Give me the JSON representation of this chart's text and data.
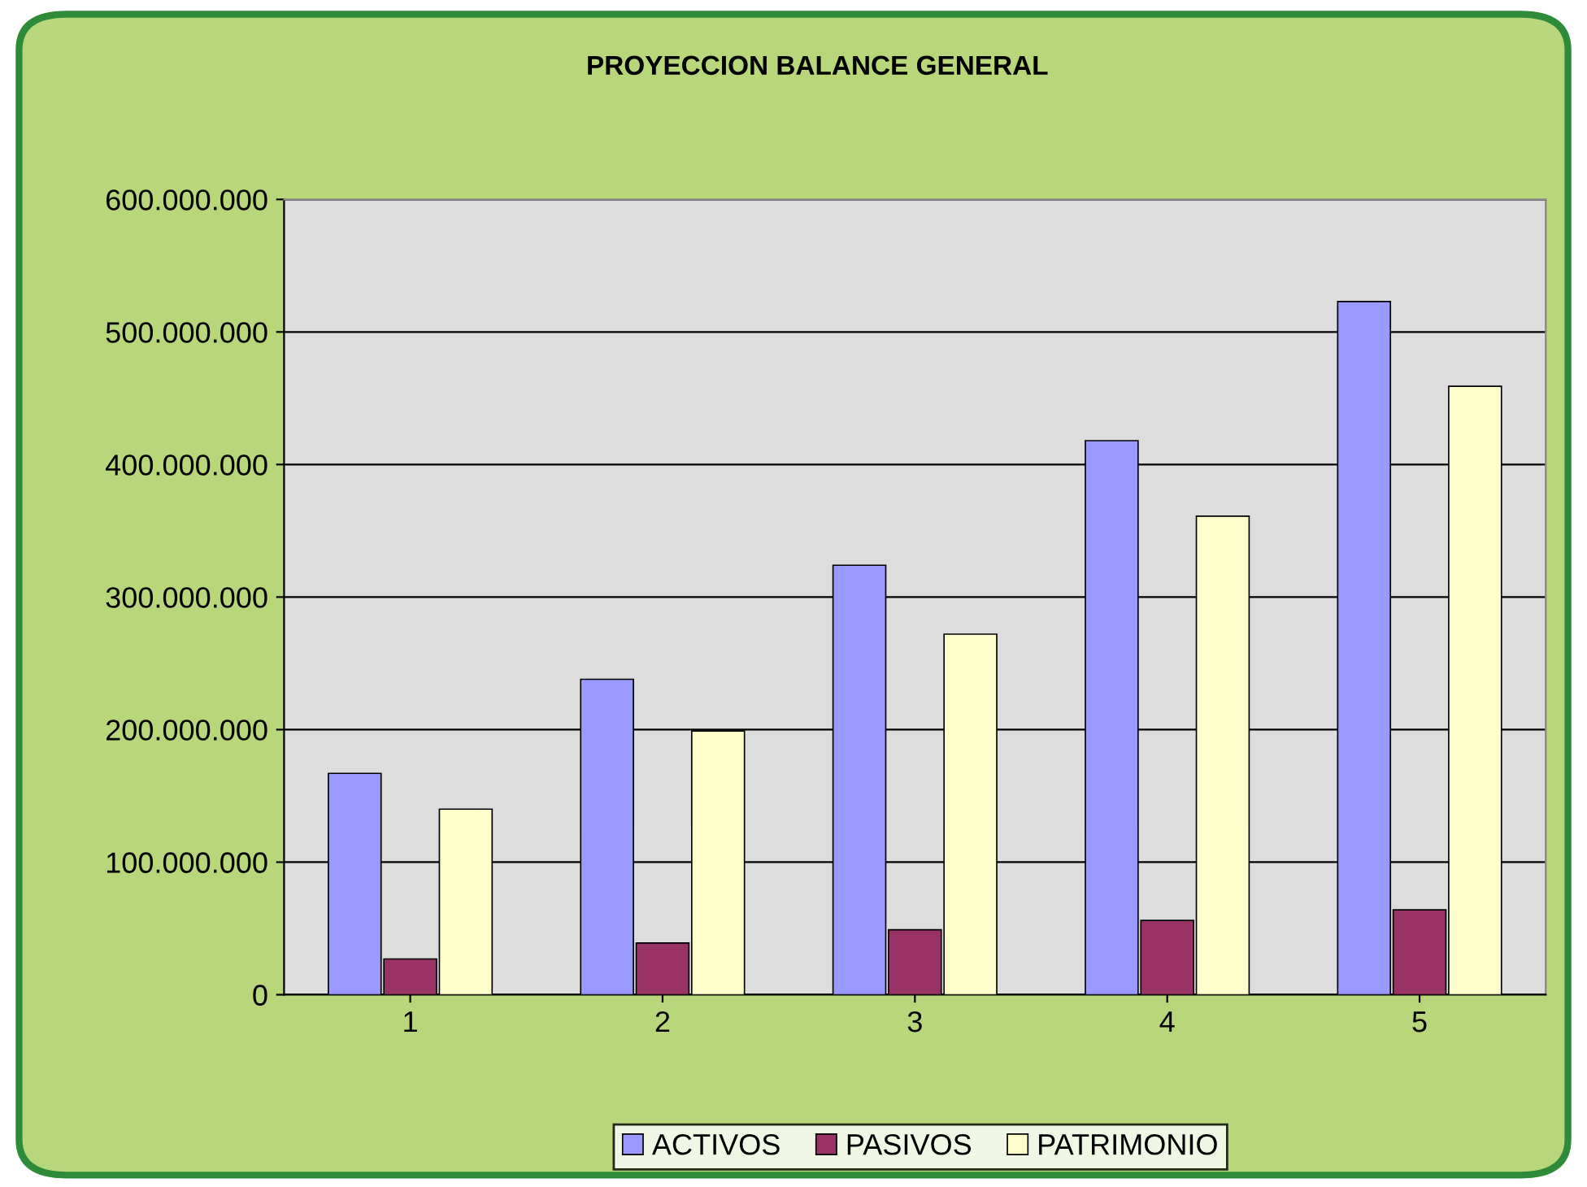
{
  "chart_data": {
    "type": "bar",
    "title": "PROYECCION BALANCE GENERAL",
    "categories": [
      "1",
      "2",
      "3",
      "4",
      "5"
    ],
    "series": [
      {
        "name": "ACTIVOS",
        "color": "#9999ff",
        "values": [
          167000000,
          238000000,
          324000000,
          418000000,
          523000000
        ]
      },
      {
        "name": "PASIVOS",
        "color": "#993366",
        "values": [
          27000000,
          39000000,
          49000000,
          56000000,
          64000000
        ]
      },
      {
        "name": "PATRIMONIO",
        "color": "#ffffcc",
        "values": [
          140000000,
          199000000,
          272000000,
          361000000,
          459000000
        ]
      }
    ],
    "ylim": [
      0,
      600000000
    ],
    "yticks": [
      0,
      {
        "value": 100000000,
        "label": "100.000.000"
      },
      {
        "value": 200000000,
        "label": "200.000.000"
      },
      {
        "value": 300000000,
        "label": "300.000.000"
      },
      {
        "value": 400000000,
        "label": "400.000.000"
      },
      {
        "value": 500000000,
        "label": "500.000.000"
      },
      {
        "value": 600000000,
        "label": "600.000.000"
      }
    ],
    "grid": "y",
    "legend": "bottom"
  }
}
